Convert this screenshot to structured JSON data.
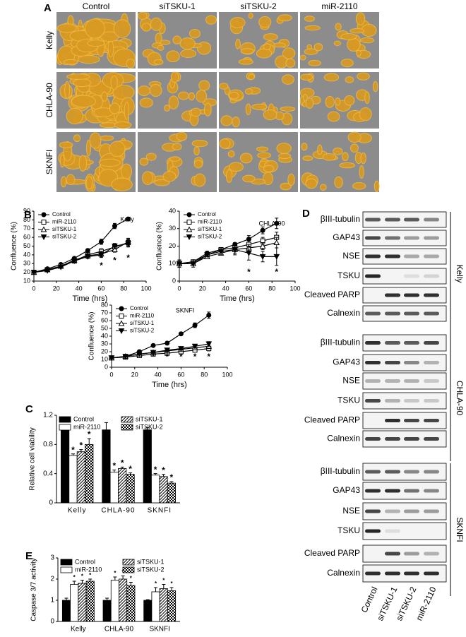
{
  "panel_a": {
    "label": "A",
    "columns": [
      "Control",
      "siTSKU-1",
      "siTSKU-2",
      "miR-2110"
    ],
    "rows": [
      "Kelly",
      "CHLA-90",
      "SKNFI"
    ]
  },
  "panel_b": {
    "label": "B"
  },
  "panel_c": {
    "label": "C"
  },
  "panel_d": {
    "label": "D",
    "lanes": [
      "Control",
      "siTSKU-1",
      "siTSKU-2",
      "miR-2110"
    ],
    "groups": [
      {
        "name": "Kelly",
        "proteins": [
          "βIII-tubulin",
          "GAP43",
          "NSE",
          "TSKU",
          "Cleaved PARP",
          "Calnexin"
        ]
      },
      {
        "name": "CHLA-90",
        "proteins": [
          "βIII-tubulin",
          "GAP43",
          "NSE",
          "TSKU",
          "Cleaved PARP",
          "Calnexin"
        ]
      },
      {
        "name": "SKNFI",
        "proteins": [
          "βIII-tubulin",
          "GAP43",
          "NSE",
          "TSKU",
          "Cleaved PARP",
          "Calnexin"
        ]
      }
    ]
  },
  "panel_e": {
    "label": "E"
  },
  "chart_data": [
    {
      "type": "line",
      "subtitle": "Kelly",
      "x_label": "Time (hrs)",
      "y_label": "Confluence (%)",
      "x": [
        0,
        12,
        24,
        36,
        48,
        60,
        72,
        84
      ],
      "xlim": [
        0,
        100
      ],
      "xticks": [
        0,
        20,
        40,
        60,
        80,
        100
      ],
      "ylim": [
        10,
        90
      ],
      "yticks": [
        10,
        20,
        30,
        40,
        50,
        60,
        70,
        80,
        90
      ],
      "legend": "upper left",
      "series": [
        {
          "name": "Control",
          "color": "#000000",
          "marker": "circle",
          "filled": true,
          "values": [
            20,
            24,
            29,
            36,
            45,
            55,
            73,
            81
          ],
          "errors": [
            1,
            1,
            1,
            1,
            2,
            3,
            3,
            2
          ]
        },
        {
          "name": "miR-2110",
          "color": "#000000",
          "marker": "square",
          "filled": false,
          "values": [
            20,
            23,
            27,
            33,
            40,
            44,
            49,
            54
          ],
          "errors": [
            1,
            1,
            1,
            2,
            2,
            3,
            3,
            4
          ]
        },
        {
          "name": "siTSKU-1",
          "color": "#000000",
          "marker": "triangle",
          "filled": false,
          "values": [
            20,
            23,
            27,
            34,
            39,
            41,
            46,
            55
          ],
          "errors": [
            1,
            1,
            1,
            2,
            2,
            3,
            3,
            4
          ]
        },
        {
          "name": "siTSKU-2",
          "color": "#000000",
          "marker": "triangle-down",
          "filled": true,
          "values": [
            20,
            22,
            26,
            33,
            38,
            40,
            50,
            53
          ],
          "errors": [
            1,
            1,
            1,
            2,
            2,
            3,
            3,
            4
          ]
        }
      ],
      "annotations": [
        {
          "x": 60,
          "y": 27,
          "text": "*"
        },
        {
          "x": 72,
          "y": 33,
          "text": "*"
        },
        {
          "x": 84,
          "y": 36,
          "text": "*"
        }
      ]
    },
    {
      "type": "line",
      "subtitle": "CHLA-90",
      "x_label": "Time (hrs)",
      "y_label": "Confluence (%)",
      "x": [
        0,
        12,
        24,
        36,
        48,
        60,
        72,
        84
      ],
      "xlim": [
        0,
        100
      ],
      "xticks": [
        0,
        20,
        40,
        60,
        80,
        100
      ],
      "ylim": [
        0,
        40
      ],
      "yticks": [
        0,
        10,
        20,
        30,
        40
      ],
      "legend": "upper left",
      "series": [
        {
          "name": "Control",
          "color": "#000000",
          "marker": "circle",
          "filled": true,
          "values": [
            10,
            11,
            16,
            18,
            21,
            24,
            29,
            33
          ],
          "errors": [
            2,
            1,
            1,
            1,
            1,
            2,
            2,
            3
          ]
        },
        {
          "name": "miR-2110",
          "color": "#000000",
          "marker": "square",
          "filled": false,
          "values": [
            10,
            11,
            15,
            18,
            19,
            21,
            23,
            25
          ],
          "errors": [
            2,
            1,
            1,
            1,
            2,
            2,
            2,
            3
          ]
        },
        {
          "name": "siTSKU-1",
          "color": "#000000",
          "marker": "triangle",
          "filled": false,
          "values": [
            10,
            10,
            14,
            16,
            18,
            19,
            20,
            22
          ],
          "errors": [
            2,
            1,
            1,
            1,
            2,
            2,
            2,
            3
          ]
        },
        {
          "name": "siTSKU-2",
          "color": "#000000",
          "marker": "triangle-down",
          "filled": true,
          "values": [
            10,
            10,
            15,
            17,
            18,
            16,
            14,
            14
          ],
          "errors": [
            2,
            2,
            1,
            2,
            3,
            4,
            3,
            5
          ]
        }
      ],
      "annotations": [
        {
          "x": 60,
          "y": 5,
          "text": "*"
        },
        {
          "x": 84,
          "y": 5,
          "text": "*"
        }
      ]
    },
    {
      "type": "line",
      "subtitle": "SKNFI",
      "x_label": "Time (hrs)",
      "y_label": "Confluence (%)",
      "x": [
        0,
        12,
        24,
        36,
        48,
        60,
        72,
        84
      ],
      "xlim": [
        0,
        100
      ],
      "xticks": [
        0,
        20,
        40,
        60,
        80,
        100
      ],
      "ylim": [
        0,
        80
      ],
      "yticks": [
        0,
        10,
        20,
        30,
        40,
        50,
        60,
        70,
        80
      ],
      "legend": "upper left",
      "series": [
        {
          "name": "Control",
          "color": "#000000",
          "marker": "circle",
          "filled": true,
          "values": [
            12,
            14,
            20,
            28,
            31,
            43,
            54,
            67
          ],
          "errors": [
            1,
            1,
            1,
            1,
            2,
            2,
            3,
            4
          ]
        },
        {
          "name": "miR-2110",
          "color": "#000000",
          "marker": "square",
          "filled": false,
          "values": [
            12,
            13,
            15,
            17,
            18,
            20,
            22,
            24
          ],
          "errors": [
            1,
            1,
            1,
            1,
            2,
            2,
            2,
            3
          ]
        },
        {
          "name": "siTSKU-1",
          "color": "#000000",
          "marker": "triangle",
          "filled": false,
          "values": [
            12,
            14,
            17,
            19,
            21,
            23,
            25,
            27
          ],
          "errors": [
            1,
            1,
            1,
            1,
            2,
            2,
            2,
            3
          ]
        },
        {
          "name": "siTSKU-2",
          "color": "#000000",
          "marker": "triangle-down",
          "filled": true,
          "values": [
            12,
            14,
            17,
            19,
            22,
            24,
            27,
            30
          ],
          "errors": [
            1,
            1,
            1,
            1,
            2,
            2,
            2,
            3
          ]
        }
      ],
      "annotations": [
        {
          "x": 36,
          "y": 13,
          "text": "*"
        },
        {
          "x": 48,
          "y": 13,
          "text": "*"
        },
        {
          "x": 60,
          "y": 13,
          "text": "*"
        },
        {
          "x": 72,
          "y": 13,
          "text": "*"
        },
        {
          "x": 84,
          "y": 13,
          "text": "*"
        }
      ]
    },
    {
      "type": "bar",
      "y_label": "Relative cell viability",
      "categories": [
        "Kelly",
        "CHLA-90",
        "SKNFI"
      ],
      "ylim": [
        0,
        1.2
      ],
      "yticks": [
        0,
        0.4,
        0.8,
        1.2
      ],
      "legend": "top",
      "series": [
        {
          "name": "Control",
          "color": "#000000",
          "pattern": "solid",
          "values": [
            1,
            1,
            1
          ],
          "errors": [
            0.05,
            0.1,
            0.03
          ]
        },
        {
          "name": "miR-2110",
          "color": "#ffffff",
          "pattern": "solid",
          "values": [
            0.65,
            0.42,
            0.38
          ],
          "errors": [
            0.02,
            0.03,
            0.02
          ],
          "annotations": [
            "*",
            "*",
            "*"
          ]
        },
        {
          "name": "siTSKU-1",
          "color": "#000000",
          "pattern": "hatch",
          "values": [
            0.7,
            0.47,
            0.36
          ],
          "errors": [
            0.03,
            0.02,
            0.03
          ],
          "annotations": [
            "*",
            "*",
            "*"
          ]
        },
        {
          "name": "siTSKU-2",
          "color": "#000000",
          "pattern": "checker",
          "values": [
            0.8,
            0.39,
            0.27
          ],
          "errors": [
            0.08,
            0.02,
            0.02
          ],
          "annotations": [
            "*",
            "*",
            "*"
          ]
        }
      ]
    },
    {
      "type": "bar",
      "y_label": "Caspase 3/7 activity",
      "categories": [
        "Kelly",
        "CHLA-90",
        "SKNFI"
      ],
      "ylim": [
        0,
        3
      ],
      "yticks": [
        0,
        1,
        2,
        3
      ],
      "legend": "top",
      "series": [
        {
          "name": "Control",
          "color": "#000000",
          "pattern": "solid",
          "values": [
            1,
            1,
            1
          ],
          "errors": [
            0.1,
            0.1,
            0.03
          ]
        },
        {
          "name": "miR-2110",
          "color": "#ffffff",
          "pattern": "solid",
          "values": [
            1.75,
            1.95,
            1.4
          ],
          "errors": [
            0.15,
            0.15,
            0.2
          ],
          "annotations": [
            "*",
            "*",
            "*"
          ]
        },
        {
          "name": "siTSKU-1",
          "color": "#000000",
          "pattern": "hatch",
          "values": [
            1.8,
            2,
            1.55
          ],
          "errors": [
            0.15,
            0.15,
            0.2
          ],
          "annotations": [
            "*",
            "*",
            "*"
          ]
        },
        {
          "name": "siTSKU-2",
          "color": "#000000",
          "pattern": "checker",
          "values": [
            1.9,
            1.7,
            1.45
          ],
          "errors": [
            0.1,
            0.15,
            0.15
          ],
          "annotations": [
            "*",
            "*",
            "*"
          ]
        }
      ]
    }
  ]
}
